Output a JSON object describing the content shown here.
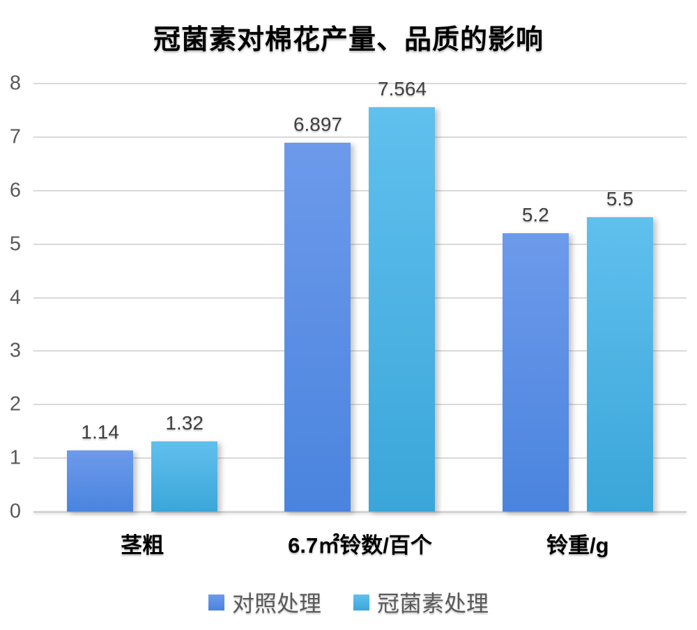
{
  "chart_data": {
    "type": "bar",
    "title": "冠菌素对棉花产量、品质的影响",
    "categories": [
      "茎粗",
      "6.7㎡铃数/百个",
      "铃重/g"
    ],
    "series": [
      {
        "name": "对照处理",
        "values": [
          1.14,
          6.897,
          5.2
        ],
        "color_top": "#6d9aeb",
        "color_bottom": "#4a84de"
      },
      {
        "name": "冠菌素处理",
        "values": [
          1.32,
          7.564,
          5.5
        ],
        "color_top": "#60c0ee",
        "color_bottom": "#3ba6d9"
      }
    ],
    "value_labels": [
      [
        "1.14",
        "6.897",
        "5.2"
      ],
      [
        "1.32",
        "7.564",
        "5.5"
      ]
    ],
    "xlabel": "",
    "ylabel": "",
    "ylim": [
      0,
      8
    ],
    "yticks": [
      "0",
      "1",
      "2",
      "3",
      "4",
      "5",
      "6",
      "7",
      "8"
    ],
    "grid": true,
    "gridline_color": "#d9d9d9",
    "tick_color": "#595959",
    "data_label_color": "#3f3f3f",
    "legend_position": "bottom"
  }
}
